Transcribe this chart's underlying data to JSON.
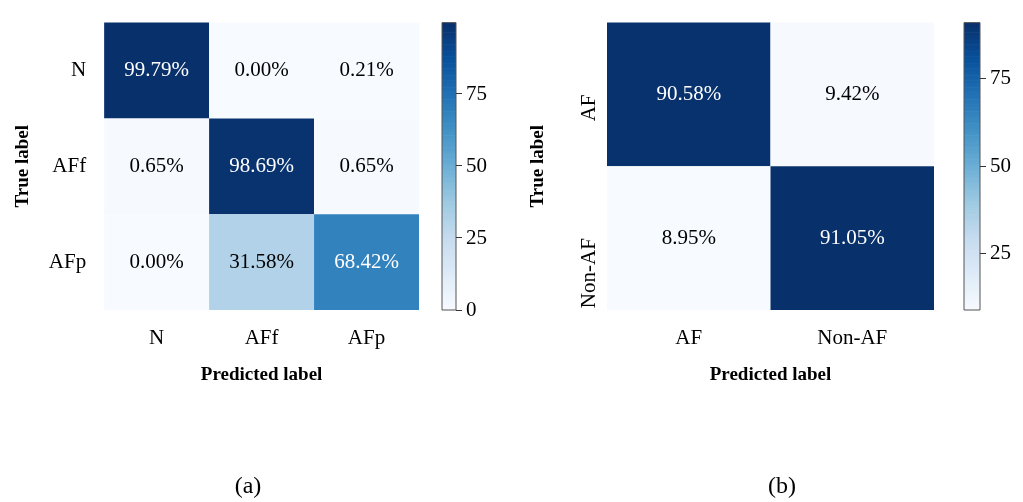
{
  "chart_data": [
    {
      "type": "heatmap",
      "xlabel": "Predicted label",
      "ylabel": "True label",
      "categories": [
        "N",
        "AFf",
        "AFp"
      ],
      "y_categories": [
        "N",
        "AFf",
        "AFp"
      ],
      "cells": [
        [
          99.79,
          0.0,
          0.21
        ],
        [
          0.65,
          98.69,
          0.65
        ],
        [
          0.0,
          31.58,
          68.42
        ]
      ],
      "cell_labels": [
        [
          "99.79%",
          "0.00%",
          "0.21%"
        ],
        [
          "0.65%",
          "98.69%",
          "0.65%"
        ],
        [
          "0.00%",
          "31.58%",
          "68.42%"
        ]
      ],
      "clim": [
        0,
        99.79
      ],
      "cticks": [
        0,
        25,
        50,
        75
      ],
      "annotations": [
        "(a)"
      ]
    },
    {
      "type": "heatmap",
      "xlabel": "Predicted label",
      "ylabel": "True label",
      "categories": [
        "AF",
        "Non-AF"
      ],
      "y_categories": [
        "AF",
        "Non-AF"
      ],
      "cells": [
        [
          90.58,
          9.42
        ],
        [
          8.95,
          91.05
        ]
      ],
      "cell_labels": [
        [
          "90.58%",
          "9.42%"
        ],
        [
          "8.95%",
          "91.05%"
        ]
      ],
      "clim": [
        8.95,
        91.05
      ],
      "cticks": [
        25,
        50,
        75
      ],
      "annotations": [
        "(b)"
      ]
    }
  ]
}
